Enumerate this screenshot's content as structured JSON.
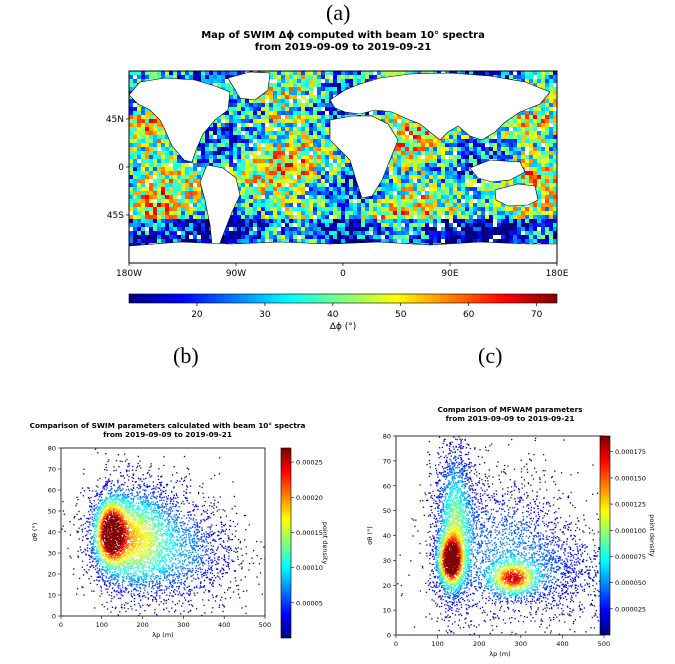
{
  "panel_labels": {
    "a": "(a)",
    "b": "(b)",
    "c": "(c)"
  },
  "chart_data": [
    {
      "type": "heatmap",
      "panel": "(a)",
      "title_line1": "Map of SWIM Δϕ computed with beam 10° spectra",
      "title_line2": "from 2019-09-09 to 2019-09-21",
      "xticks": [
        "180W",
        "90W",
        "0",
        "90E",
        "180E"
      ],
      "yticks": [
        "45N",
        "0",
        "45S"
      ],
      "colorbar": {
        "label": "Δϕ (°)",
        "range": [
          10,
          73
        ],
        "ticks": [
          "20",
          "30",
          "40",
          "50",
          "60",
          "70"
        ],
        "colormap": "jet"
      }
    },
    {
      "type": "scatter",
      "panel": "(b)",
      "title_line1": "Comparison of SWIM parameters calculated with beam 10° spectra",
      "title_line2": "from 2019-09-09 to 2019-09-21",
      "xlabel": "λp (m)",
      "ylabel": "σθ (°)",
      "xlim": [
        0,
        500
      ],
      "ylim": [
        0,
        80
      ],
      "xticks": [
        "0",
        "100",
        "200",
        "300",
        "400",
        "500"
      ],
      "yticks": [
        "0",
        "10",
        "20",
        "30",
        "40",
        "50",
        "60",
        "70",
        "80"
      ],
      "density_peaks": [
        {
          "x": 120,
          "y": 40
        }
      ],
      "colorbar": {
        "label": "point density",
        "range": [
          0,
          0.00027
        ],
        "ticks": [
          "0.00005",
          "0.00010",
          "0.00015",
          "0.00020",
          "0.00025"
        ],
        "colormap": "jet"
      }
    },
    {
      "type": "scatter",
      "panel": "(c)",
      "title_line1": "Comparison of MFWAM parameters",
      "title_line2": "from 2019-09-09 to 2019-09-21",
      "xlabel": "λp (m)",
      "ylabel": "σθ (°)",
      "xlim": [
        0,
        500
      ],
      "ylim": [
        0,
        80
      ],
      "xticks": [
        "0",
        "100",
        "200",
        "300",
        "400",
        "500"
      ],
      "yticks": [
        "0",
        "10",
        "20",
        "30",
        "40",
        "50",
        "60",
        "70",
        "80"
      ],
      "density_peaks": [
        {
          "x": 130,
          "y": 30
        },
        {
          "x": 280,
          "y": 23
        }
      ],
      "colorbar": {
        "label": "point density",
        "range": [
          0,
          0.00019
        ],
        "ticks": [
          "0.000025",
          "0.000050",
          "0.000075",
          "0.000100",
          "0.000125",
          "0.000150",
          "0.000175"
        ],
        "colormap": "jet"
      }
    }
  ]
}
